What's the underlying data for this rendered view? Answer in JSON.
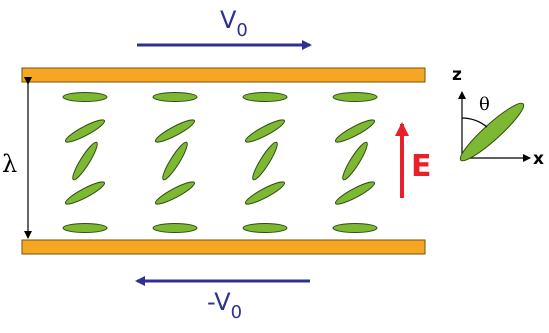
{
  "top_velocity": {
    "symbol": "V",
    "subscript": "0"
  },
  "bottom_velocity": {
    "symbol": "-V",
    "subscript": "0"
  },
  "gap_label": "λ",
  "field_label": "E",
  "axes": {
    "z": "z",
    "x": "x",
    "angle": "θ"
  }
}
